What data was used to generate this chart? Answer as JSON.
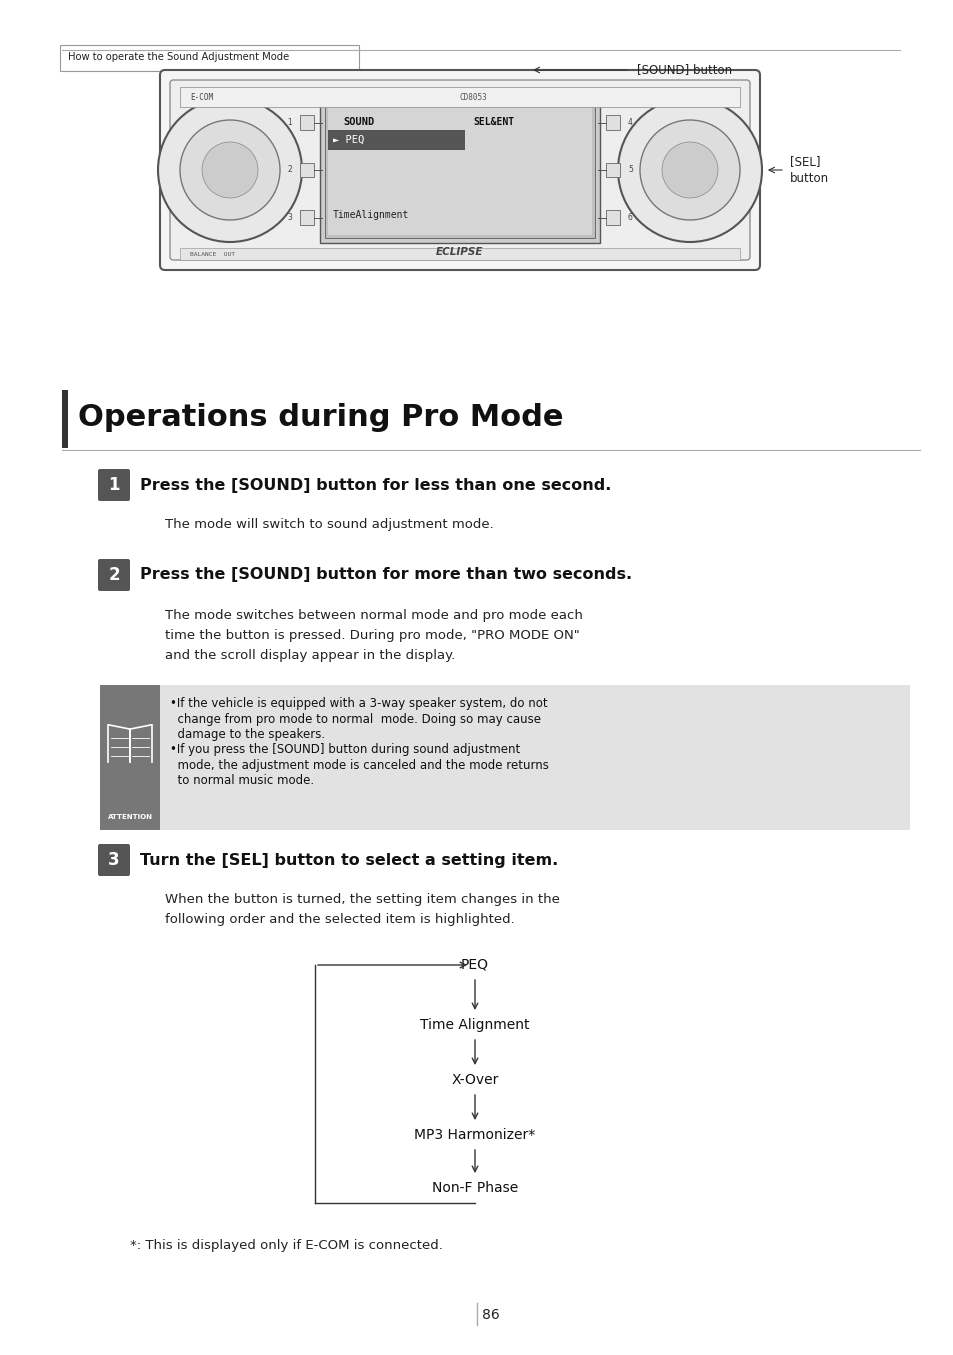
{
  "page_bg": "#ffffff",
  "header_text": "How to operate the Sound Adjustment Mode",
  "section_title": "Operations during Pro Mode",
  "step1_num": "1",
  "step1_heading": "Press the [SOUND] button for less than one second.",
  "step1_body": "The mode will switch to sound adjustment mode.",
  "step2_num": "2",
  "step2_heading": "Press the [SOUND] button for more than two seconds.",
  "step2_body1": "The mode switches between normal mode and pro mode each",
  "step2_body2": "time the button is pressed. During pro mode, \"PRO MODE ON\"",
  "step2_body3": "and the scroll display appear in the display.",
  "attn_bullet1_line1": "•If the vehicle is equipped with a 3-way speaker system, do not",
  "attn_bullet1_line2": "  change from pro mode to normal  mode. Doing so may cause",
  "attn_bullet1_line3": "  damage to the speakers.",
  "attn_bullet2_line1": "•If you press the [SOUND] button during sound adjustment",
  "attn_bullet2_line2": "  mode, the adjustment mode is canceled and the mode returns",
  "attn_bullet2_line3": "  to normal music mode.",
  "step3_num": "3",
  "step3_heading": "Turn the [SEL] button to select a setting item.",
  "step3_body1": "When the button is turned, the setting item changes in the",
  "step3_body2": "following order and the selected item is highlighted.",
  "flow_items": [
    "PEQ",
    "Time Alignment",
    "X-Over",
    "MP3 Harmonizer*",
    "Non-F Phase"
  ],
  "footnote": "*: This is displayed only if E-COM is connected.",
  "page_number": "86",
  "sound_btn_label": "[SOUND] button",
  "sel_btn_label": "[SEL]\nbutton",
  "attn_bg": "#777777",
  "attn_text_bg": "#e2e2e2",
  "step_badge_color": "#555555",
  "step_text_color": "#ffffff",
  "section_bar_color": "#333333",
  "body_fontsize": 9.5,
  "heading_fontsize": 11.5,
  "section_title_fontsize": 22
}
